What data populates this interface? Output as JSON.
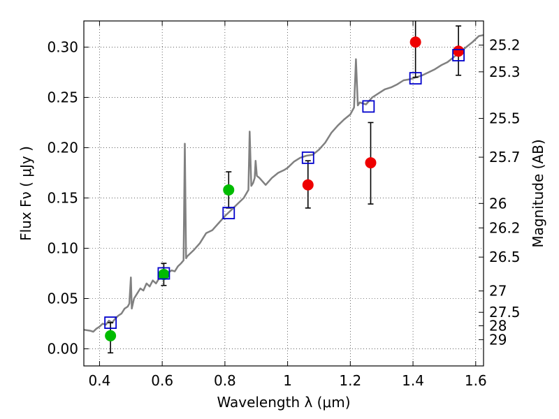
{
  "chart_data": {
    "type": "scatter",
    "title": "",
    "xlabel": "Wavelength  λ (μm)",
    "ylabel": "Flux  Fν  ( μJy )",
    "ylabel_right": "Magnitude (AB)",
    "xlim": [
      0.35,
      1.625
    ],
    "ylim": [
      -0.017,
      0.326
    ],
    "x_ticks": [
      0.4,
      0.6,
      0.8,
      1.0,
      1.2,
      1.4,
      1.6
    ],
    "x_tick_labels": [
      "0.4",
      "0.6",
      "0.8",
      "1",
      "1.2",
      "1.4",
      "1.6"
    ],
    "y_ticks": [
      0.0,
      0.05,
      0.1,
      0.15,
      0.2,
      0.25,
      0.3
    ],
    "y_tick_labels": [
      "0.00",
      "0.05",
      "0.10",
      "0.15",
      "0.20",
      "0.25",
      "0.30"
    ],
    "right_ticks": [
      {
        "mag": 25.2,
        "label": "25.2"
      },
      {
        "mag": 25.3,
        "label": "25.3"
      },
      {
        "mag": 25.5,
        "label": "25.5"
      },
      {
        "mag": 25.7,
        "label": "25.7"
      },
      {
        "mag": 26.0,
        "label": "26"
      },
      {
        "mag": 26.2,
        "label": "26.2"
      },
      {
        "mag": 26.5,
        "label": "26.5"
      },
      {
        "mag": 27.0,
        "label": "27"
      },
      {
        "mag": 27.5,
        "label": "27.5"
      },
      {
        "mag": 28.0,
        "label": "28"
      },
      {
        "mag": 29.0,
        "label": "29"
      }
    ],
    "grid": true,
    "colors": {
      "model": "#808080",
      "green_points": "#00bb00",
      "red_points": "#ee0000",
      "squares": "#0000cc",
      "errorbars": "#000000"
    },
    "series": [
      {
        "marker": "line",
        "color": "#808080",
        "points": [
          [
            0.35,
            0.019
          ],
          [
            0.37,
            0.018
          ],
          [
            0.38,
            0.017
          ],
          [
            0.39,
            0.02
          ],
          [
            0.4,
            0.022
          ],
          [
            0.41,
            0.025
          ],
          [
            0.42,
            0.024
          ],
          [
            0.43,
            0.028
          ],
          [
            0.44,
            0.026
          ],
          [
            0.45,
            0.03
          ],
          [
            0.46,
            0.033
          ],
          [
            0.47,
            0.035
          ],
          [
            0.48,
            0.04
          ],
          [
            0.49,
            0.042
          ],
          [
            0.495,
            0.045
          ],
          [
            0.5,
            0.071
          ],
          [
            0.503,
            0.04
          ],
          [
            0.51,
            0.05
          ],
          [
            0.52,
            0.055
          ],
          [
            0.53,
            0.06
          ],
          [
            0.54,
            0.058
          ],
          [
            0.55,
            0.065
          ],
          [
            0.56,
            0.062
          ],
          [
            0.57,
            0.068
          ],
          [
            0.58,
            0.065
          ],
          [
            0.59,
            0.07
          ],
          [
            0.6,
            0.074
          ],
          [
            0.61,
            0.072
          ],
          [
            0.62,
            0.076
          ],
          [
            0.63,
            0.078
          ],
          [
            0.64,
            0.077
          ],
          [
            0.65,
            0.082
          ],
          [
            0.66,
            0.085
          ],
          [
            0.668,
            0.088
          ],
          [
            0.672,
            0.204
          ],
          [
            0.676,
            0.09
          ],
          [
            0.68,
            0.092
          ],
          [
            0.7,
            0.098
          ],
          [
            0.72,
            0.105
          ],
          [
            0.74,
            0.115
          ],
          [
            0.76,
            0.118
          ],
          [
            0.78,
            0.125
          ],
          [
            0.8,
            0.132
          ],
          [
            0.82,
            0.138
          ],
          [
            0.84,
            0.144
          ],
          [
            0.86,
            0.15
          ],
          [
            0.875,
            0.158
          ],
          [
            0.879,
            0.216
          ],
          [
            0.884,
            0.162
          ],
          [
            0.89,
            0.165
          ],
          [
            0.895,
            0.17
          ],
          [
            0.898,
            0.187
          ],
          [
            0.902,
            0.172
          ],
          [
            0.91,
            0.17
          ],
          [
            0.93,
            0.163
          ],
          [
            0.95,
            0.17
          ],
          [
            0.97,
            0.175
          ],
          [
            0.99,
            0.178
          ],
          [
            1.0,
            0.18
          ],
          [
            1.02,
            0.186
          ],
          [
            1.04,
            0.19
          ],
          [
            1.06,
            0.192
          ],
          [
            1.08,
            0.193
          ],
          [
            1.1,
            0.198
          ],
          [
            1.12,
            0.205
          ],
          [
            1.14,
            0.215
          ],
          [
            1.16,
            0.222
          ],
          [
            1.18,
            0.228
          ],
          [
            1.2,
            0.233
          ],
          [
            1.212,
            0.24
          ],
          [
            1.218,
            0.288
          ],
          [
            1.224,
            0.242
          ],
          [
            1.23,
            0.245
          ],
          [
            1.25,
            0.243
          ],
          [
            1.27,
            0.25
          ],
          [
            1.29,
            0.254
          ],
          [
            1.31,
            0.258
          ],
          [
            1.33,
            0.26
          ],
          [
            1.35,
            0.263
          ],
          [
            1.37,
            0.267
          ],
          [
            1.39,
            0.268
          ],
          [
            1.41,
            0.27
          ],
          [
            1.43,
            0.272
          ],
          [
            1.45,
            0.275
          ],
          [
            1.47,
            0.278
          ],
          [
            1.49,
            0.282
          ],
          [
            1.51,
            0.285
          ],
          [
            1.53,
            0.29
          ],
          [
            1.55,
            0.295
          ],
          [
            1.57,
            0.3
          ],
          [
            1.59,
            0.305
          ],
          [
            1.61,
            0.311
          ],
          [
            1.625,
            0.312
          ]
        ]
      },
      {
        "marker": "circle",
        "color": "#00bb00",
        "points": [
          {
            "x": 0.435,
            "y": 0.013,
            "err_lo": 0.017,
            "err_hi": 0.013
          },
          {
            "x": 0.605,
            "y": 0.074,
            "err_lo": 0.011,
            "err_hi": 0.011
          },
          {
            "x": 0.812,
            "y": 0.158,
            "err_lo": 0.018,
            "err_hi": 0.018
          }
        ]
      },
      {
        "marker": "circle",
        "color": "#ee0000",
        "points": [
          {
            "x": 1.065,
            "y": 0.163,
            "err_lo": 0.023,
            "err_hi": 0.024
          },
          {
            "x": 1.265,
            "y": 0.185,
            "err_lo": 0.041,
            "err_hi": 0.04
          },
          {
            "x": 1.408,
            "y": 0.305,
            "err_lo": 0.035,
            "err_hi": 0.035
          },
          {
            "x": 1.545,
            "y": 0.296,
            "err_lo": 0.024,
            "err_hi": 0.025
          }
        ]
      },
      {
        "marker": "square",
        "color": "#0000cc",
        "points": [
          {
            "x": 0.435,
            "y": 0.026
          },
          {
            "x": 0.605,
            "y": 0.075
          },
          {
            "x": 0.812,
            "y": 0.135
          },
          {
            "x": 1.065,
            "y": 0.19
          },
          {
            "x": 1.258,
            "y": 0.241
          },
          {
            "x": 1.408,
            "y": 0.269
          },
          {
            "x": 1.545,
            "y": 0.292
          }
        ]
      }
    ]
  }
}
